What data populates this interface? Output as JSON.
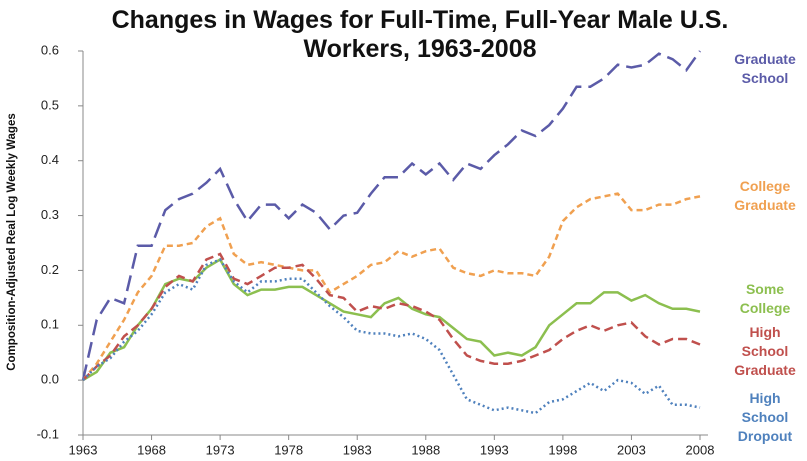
{
  "chart_data": {
    "type": "line",
    "title": "Changes in Wages for Full-Time, Full-Year Male U.S. Workers, 1963-2008",
    "y_label": "Composition-Adjusted Real Log Weekly Wages",
    "x": [
      1963,
      1964,
      1965,
      1966,
      1967,
      1968,
      1969,
      1970,
      1971,
      1972,
      1973,
      1974,
      1975,
      1976,
      1977,
      1978,
      1979,
      1980,
      1981,
      1982,
      1983,
      1984,
      1985,
      1986,
      1987,
      1988,
      1989,
      1990,
      1991,
      1992,
      1993,
      1994,
      1995,
      1996,
      1997,
      1998,
      1999,
      2000,
      2001,
      2002,
      2003,
      2004,
      2005,
      2006,
      2007,
      2008
    ],
    "series": [
      {
        "name": "Graduate School",
        "color": "#5b5ba8",
        "values": [
          0,
          0.11,
          0.15,
          0.14,
          0.245,
          0.245,
          0.31,
          0.33,
          0.34,
          0.36,
          0.385,
          0.33,
          0.29,
          0.32,
          0.32,
          0.295,
          0.32,
          0.305,
          0.275,
          0.3,
          0.305,
          0.34,
          0.37,
          0.37,
          0.395,
          0.375,
          0.395,
          0.365,
          0.395,
          0.385,
          0.41,
          0.43,
          0.455,
          0.445,
          0.465,
          0.495,
          0.535,
          0.535,
          0.55,
          0.575,
          0.57,
          0.575,
          0.595,
          0.585,
          0.565,
          0.6
        ]
      },
      {
        "name": "College Graduate",
        "color": "#f0a050",
        "values": [
          0,
          0.03,
          0.07,
          0.11,
          0.16,
          0.19,
          0.245,
          0.245,
          0.25,
          0.28,
          0.295,
          0.23,
          0.21,
          0.215,
          0.21,
          0.205,
          0.2,
          0.2,
          0.16,
          0.175,
          0.19,
          0.21,
          0.215,
          0.235,
          0.225,
          0.235,
          0.24,
          0.205,
          0.195,
          0.19,
          0.2,
          0.195,
          0.195,
          0.19,
          0.225,
          0.29,
          0.315,
          0.33,
          0.335,
          0.34,
          0.31,
          0.31,
          0.32,
          0.32,
          0.33,
          0.335
        ]
      },
      {
        "name": "Some College",
        "color": "#8cbf4f",
        "values": [
          0,
          0.015,
          0.05,
          0.06,
          0.1,
          0.13,
          0.175,
          0.185,
          0.18,
          0.205,
          0.22,
          0.175,
          0.155,
          0.165,
          0.165,
          0.17,
          0.17,
          0.155,
          0.14,
          0.125,
          0.12,
          0.115,
          0.14,
          0.15,
          0.13,
          0.12,
          0.115,
          0.095,
          0.075,
          0.07,
          0.045,
          0.05,
          0.045,
          0.06,
          0.1,
          0.12,
          0.14,
          0.14,
          0.16,
          0.16,
          0.145,
          0.155,
          0.14,
          0.13,
          0.13,
          0.125
        ]
      },
      {
        "name": "High School Graduate",
        "color": "#c0504d",
        "values": [
          0,
          0.025,
          0.045,
          0.08,
          0.1,
          0.13,
          0.17,
          0.19,
          0.18,
          0.22,
          0.23,
          0.185,
          0.175,
          0.19,
          0.205,
          0.205,
          0.21,
          0.185,
          0.155,
          0.15,
          0.125,
          0.135,
          0.13,
          0.14,
          0.135,
          0.125,
          0.11,
          0.075,
          0.045,
          0.035,
          0.03,
          0.03,
          0.035,
          0.045,
          0.055,
          0.075,
          0.09,
          0.1,
          0.09,
          0.1,
          0.105,
          0.08,
          0.065,
          0.075,
          0.075,
          0.065
        ]
      },
      {
        "name": "High School Dropout",
        "color": "#4f81bd",
        "values": [
          0,
          0.025,
          0.04,
          0.07,
          0.09,
          0.12,
          0.16,
          0.175,
          0.165,
          0.21,
          0.22,
          0.18,
          0.16,
          0.18,
          0.18,
          0.185,
          0.185,
          0.16,
          0.135,
          0.115,
          0.09,
          0.085,
          0.085,
          0.08,
          0.085,
          0.075,
          0.055,
          0.01,
          -0.035,
          -0.045,
          -0.055,
          -0.05,
          -0.055,
          -0.06,
          -0.04,
          -0.035,
          -0.02,
          -0.005,
          -0.02,
          0,
          -0.005,
          -0.025,
          -0.01,
          -0.045,
          -0.045,
          -0.05
        ]
      }
    ],
    "xlim": [
      1963,
      2008
    ],
    "xticks": [
      1963,
      1968,
      1973,
      1978,
      1983,
      1988,
      1993,
      1998,
      2003,
      2008
    ],
    "ylim": [
      -0.1,
      0.6
    ],
    "yticks": [
      -0.1,
      {
        "value": 0,
        "label": "0.0"
      },
      0.1,
      0.2,
      0.3,
      0.4,
      0.5,
      0.6
    ],
    "grid": false
  }
}
